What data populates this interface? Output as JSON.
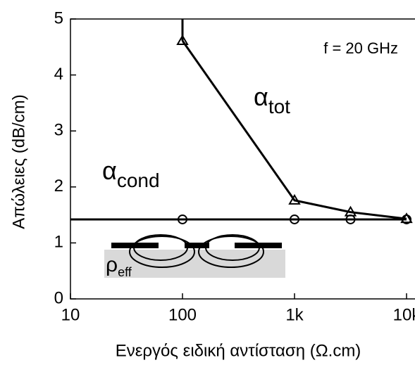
{
  "chart_data": {
    "type": "line",
    "xlabel": "Ενεργός ειδική αντίσταση (Ω.cm)",
    "ylabel": "Απώλειες (dB/cm)",
    "annotation": "f = 20 GHz",
    "log_x": true,
    "xlim": [
      10,
      10000
    ],
    "ylim": [
      0,
      5
    ],
    "xticks": [
      10,
      100,
      {
        "value": 1000,
        "label": "1k"
      },
      {
        "value": 10000,
        "label": "10k"
      }
    ],
    "yticks": [
      0,
      1,
      2,
      3,
      4,
      5
    ],
    "series": [
      {
        "name": "α",
        "subscript": "tot",
        "color": "#000000",
        "marker": "triangle",
        "x": [
          100,
          1000,
          3162,
          10000
        ],
        "values": [
          4.61,
          1.76,
          1.55,
          1.43
        ]
      },
      {
        "name": "α",
        "subscript": "cond",
        "color": "#000000",
        "marker": "circle",
        "x": [
          100,
          1000,
          3162,
          10000
        ],
        "values": [
          1.42,
          1.42,
          1.42,
          1.42
        ]
      }
    ],
    "inset_label": {
      "symbol": "ρ",
      "subscript": "eff"
    }
  }
}
